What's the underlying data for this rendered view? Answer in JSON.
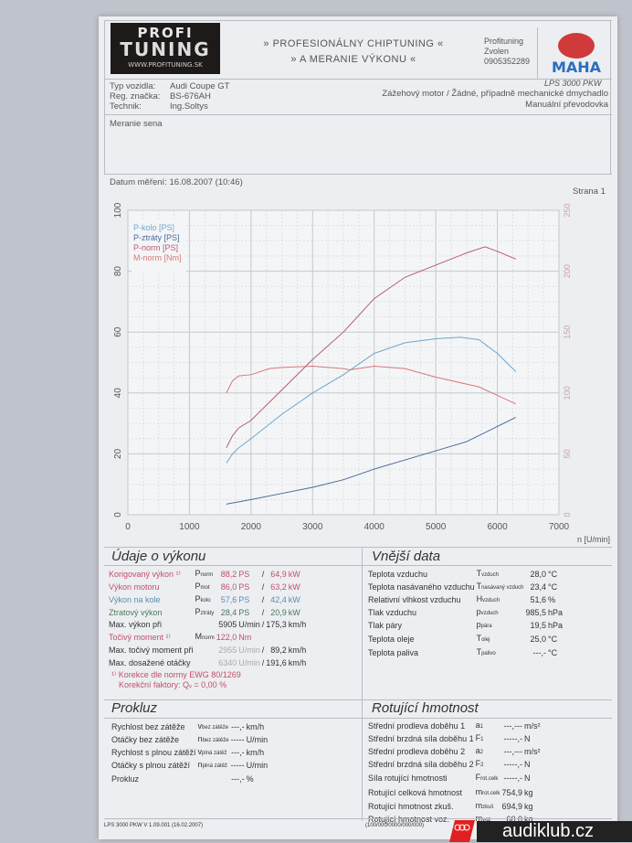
{
  "header": {
    "logo_top": "PROFI",
    "logo_main": "TUNING",
    "logo_url": "WWW.PROFITUNING.SK",
    "title_line1": "» Profesionálny Chiptuning «",
    "title_line2": "» a meranie výkonu «",
    "company": "Profituning",
    "city": "Zvolen",
    "phone": "0905352289",
    "maha_logo": "MAHA",
    "device": "LPS 3000 PKW"
  },
  "vehicle": {
    "type_label": "Typ vozidla:",
    "type_value": "Audi Coupe GT",
    "reg_label": "Reg. značka:",
    "reg_value": "BS-676AH",
    "tech_label": "Technik:",
    "tech_value": "Ing.Soltys",
    "engine": "Zážehový motor / Žádné, případně mechanické dmychadlo",
    "gearbox": "Manuální převodovka"
  },
  "note": "Meranie sena",
  "date_label": "Datum měření: 16.08.2007 (10:46)",
  "page_label": "Strana 1",
  "chart_data": {
    "type": "line",
    "xlabel": "n [U/min]",
    "xlim": [
      0,
      7000
    ],
    "ylim": [
      0,
      100
    ],
    "y2lim": [
      0,
      250
    ],
    "xticks": [
      0,
      1000,
      2000,
      3000,
      4000,
      5000,
      6000,
      7000
    ],
    "yticks": [
      0,
      20,
      40,
      60,
      80,
      100
    ],
    "y2ticks": [
      0,
      50,
      100,
      150,
      200,
      250
    ],
    "grid": true,
    "legend": "top-left",
    "series": [
      {
        "name": "P-kolo [PS]",
        "axis": "left",
        "color": "#6fa6c8",
        "x": [
          1600,
          1700,
          1800,
          2000,
          2500,
          3000,
          3500,
          4000,
          4500,
          5000,
          5400,
          5700,
          6000,
          6300
        ],
        "y": [
          17,
          20,
          22,
          25,
          33,
          40,
          46,
          53,
          56.5,
          57.8,
          58.3,
          57.5,
          53,
          47
        ]
      },
      {
        "name": "P-ztráty [PS]",
        "axis": "left",
        "color": "#4a6a9a",
        "x": [
          1600,
          2000,
          2500,
          3000,
          3500,
          4000,
          4500,
          5000,
          5500,
          6000,
          6300
        ],
        "y": [
          3.5,
          5,
          7,
          9,
          11.5,
          15,
          18,
          21,
          24,
          29,
          32
        ]
      },
      {
        "name": "P-norm [PS]",
        "axis": "left",
        "color": "#b65a7a",
        "x": [
          1600,
          1700,
          1800,
          2000,
          2500,
          3000,
          3500,
          4000,
          4500,
          5000,
          5500,
          5800,
          6000,
          6300
        ],
        "y": [
          22,
          26,
          28.5,
          31,
          41,
          51,
          60,
          71,
          78,
          82,
          86,
          88,
          86.5,
          84
        ]
      },
      {
        "name": "M-norm [Nm]",
        "axis": "right",
        "color": "#d87878",
        "x": [
          1600,
          1700,
          1800,
          2000,
          2300,
          2500,
          3000,
          3500,
          3600,
          4000,
          4500,
          5000,
          5700,
          6000,
          6300
        ],
        "y": [
          100,
          110,
          114,
          115,
          120,
          121,
          122,
          120,
          119,
          122,
          120,
          113,
          105,
          98,
          91
        ]
      }
    ]
  },
  "performance": {
    "title": "Údaje o výkonu",
    "rows": [
      {
        "label": "Korigovaný výkon ¹⁾",
        "sym": "P",
        "sub": "norm",
        "v1": "88,2",
        "u1": "PS",
        "sep": "/",
        "v2": "64,9",
        "u2": "kW",
        "color": "#c0506a"
      },
      {
        "label": "Výkon motoru",
        "sym": "P",
        "sub": "mot",
        "v1": "86,0",
        "u1": "PS",
        "sep": "/",
        "v2": "63,2",
        "u2": "kW",
        "color": "#c0506a"
      },
      {
        "label": "Výkon na kole",
        "sym": "P",
        "sub": "kolo",
        "v1": "57,6",
        "u1": "PS",
        "sep": "/",
        "v2": "42,4",
        "u2": "kW",
        "color": "#5a8fb0"
      },
      {
        "label": "Ztratový výkon",
        "sym": "P",
        "sub": "ztráty",
        "v1": "28,4",
        "u1": "PS",
        "sep": "/",
        "v2": "20,9",
        "u2": "kW",
        "color": "#4a7a5a"
      },
      {
        "label": "Max. výkon při",
        "sym": "",
        "sub": "",
        "v1": "5905",
        "u1": "U/min",
        "sep": "/",
        "v2": "175,3",
        "u2": "km/h",
        "color": "#333"
      }
    ],
    "torque": {
      "label": "Točivý moment ¹⁾",
      "sym": "M",
      "sub": "norm",
      "v1": "122,0",
      "u1": "Nm"
    },
    "max_torque": {
      "label": "Max. točivý moment při",
      "v1": "2955",
      "u1": "U/min",
      "sep": "/",
      "v2": "89,2",
      "u2": "km/h"
    },
    "max_rpm": {
      "label": "Max. dosažené otáčky",
      "v1": "6340",
      "u1": "U/min",
      "sep": "/",
      "v2": "191,6",
      "u2": "km/h"
    },
    "correction": "¹⁾ Korekce dle normy EWG 80/1269",
    "factor": "Korekční faktory: Qᵥ =   0,00 %"
  },
  "ambient": {
    "title": "Vnější data",
    "rows": [
      {
        "label": "Teplota vzduchu",
        "sym": "T",
        "sub": "vzduch",
        "v": "28,0",
        "u": "°C"
      },
      {
        "label": "Teplota nasávaného vzduchu",
        "sym": "T",
        "sub": "nasávaný vzduch",
        "v": "23,4",
        "u": "°C"
      },
      {
        "label": "Relativní vlhkost vzduchu",
        "sym": "H",
        "sub": "vzduch",
        "v": "51,6",
        "u": "%"
      },
      {
        "label": "Tlak vzduchu",
        "sym": "p",
        "sub": "vzduch",
        "v": "985,5",
        "u": "hPa"
      },
      {
        "label": "Tlak páry",
        "sym": "p",
        "sub": "pára",
        "v": "19,5",
        "u": "hPa"
      },
      {
        "label": "Teplota oleje",
        "sym": "T",
        "sub": "olej",
        "v": "25,0",
        "u": "°C"
      },
      {
        "label": "Teplota paliva",
        "sym": "T",
        "sub": "palivo",
        "v": "---,-",
        "u": "°C"
      }
    ]
  },
  "slip": {
    "title": "Prokluz",
    "rows": [
      {
        "label": "Rychlost bez zátěže",
        "sym": "v",
        "sub": "bez zátěže",
        "v": "---,-",
        "u": "km/h"
      },
      {
        "label": "Otáčky bez zátěže",
        "sym": "n",
        "sub": "bez zátěže",
        "v": "-----",
        "u": "U/min"
      },
      {
        "label": "Rychlost s plnou zátěží",
        "sym": "v",
        "sub": "plná zátěž",
        "v": "---,-",
        "u": "km/h"
      },
      {
        "label": "Otáčky s plnou zátěží",
        "sym": "n",
        "sub": "plná zátěž",
        "v": "-----",
        "u": "U/min"
      },
      {
        "label": "Prokluz",
        "sym": "",
        "sub": "",
        "v": "---,-",
        "u": "%"
      }
    ]
  },
  "rotating": {
    "title": "Rotující hmotnost",
    "rows": [
      {
        "label": "Střední prodleva doběhu 1",
        "sym": "a",
        "sub": "1",
        "v": "---,---",
        "u": "m/s²"
      },
      {
        "label": "Střední brzdná síla doběhu 1",
        "sym": "F",
        "sub": "1",
        "v": "-----,-",
        "u": "N"
      },
      {
        "label": "Střední prodleva doběhu 2",
        "sym": "a",
        "sub": "2",
        "v": "---,---",
        "u": "m/s²"
      },
      {
        "label": "Střední brzdná síla doběhu 2",
        "sym": "F",
        "sub": "2",
        "v": "-----,-",
        "u": "N"
      },
      {
        "label": "Síla rotující hmotnosti",
        "sym": "F",
        "sub": "rot.celk",
        "v": "-----,-",
        "u": "N"
      },
      {
        "label": "Rotující celková hmotnost",
        "sym": "m",
        "sub": "rot.celk",
        "v": "754,9",
        "u": "kg"
      },
      {
        "label": "Rotující hmotnost zkuš.",
        "sym": "m",
        "sub": "zkuš",
        "v": "694,9",
        "u": "kg"
      },
      {
        "label": "Rotující hmotnost voz.",
        "sym": "m",
        "sub": "voz",
        "v": "60,0",
        "u": "kg"
      }
    ]
  },
  "footer": {
    "version": "LPS 3000 PKW V 1.09.001 (16.02.2007)",
    "code": "(100/000/0000/000/000)"
  },
  "watermark": {
    "text": "audiklub.cz"
  }
}
